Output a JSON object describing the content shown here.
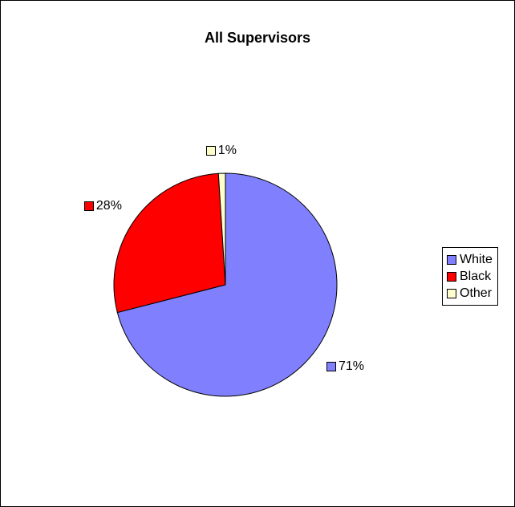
{
  "chart_data": {
    "type": "pie",
    "title": "All Supervisors",
    "categories": [
      "White",
      "Black",
      "Other"
    ],
    "values": [
      71,
      28,
      1
    ],
    "data_labels": [
      "71%",
      "28%",
      "1%"
    ],
    "colors": [
      "#8080ff",
      "#ff0000",
      "#ffffcc"
    ],
    "legend_position": "right"
  }
}
